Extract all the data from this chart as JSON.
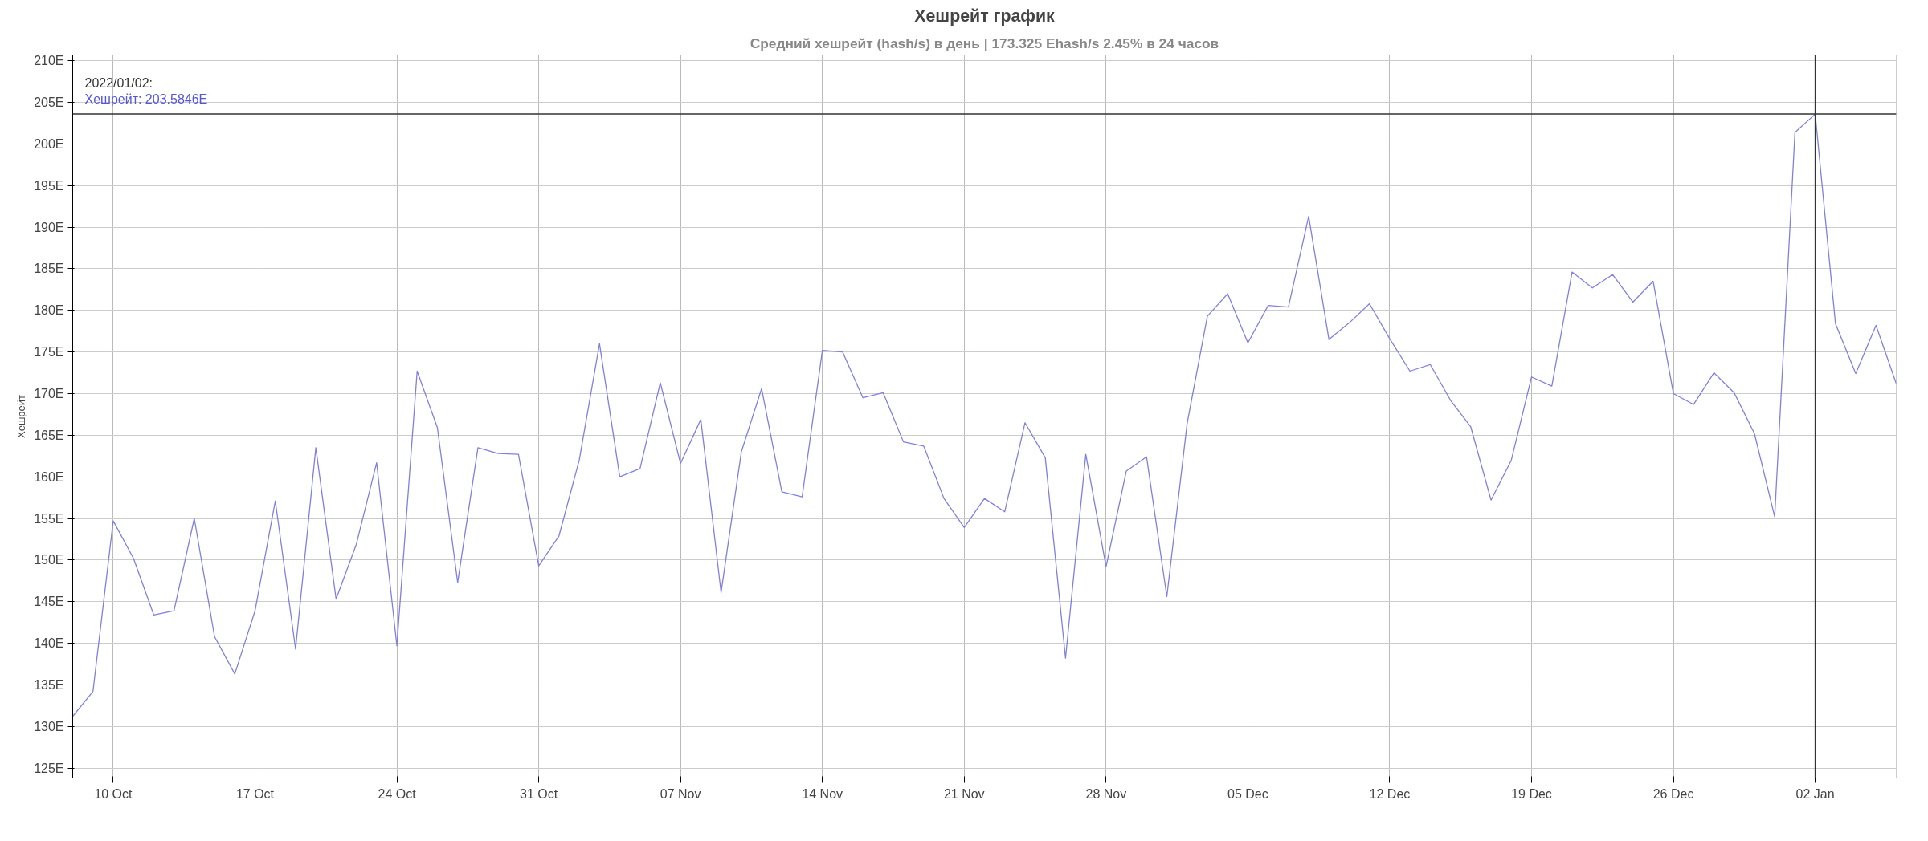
{
  "chart_data": {
    "type": "line",
    "title": "Хешрейт график",
    "subtitle": "Средний хешрейт (hash/s) в день | 173.325 Ehash/s 2.45% в 24 часов",
    "ylabel": "Хешрейт",
    "x": [
      "2021-10-08",
      "2021-10-09",
      "2021-10-10",
      "2021-10-11",
      "2021-10-12",
      "2021-10-13",
      "2021-10-14",
      "2021-10-15",
      "2021-10-16",
      "2021-10-17",
      "2021-10-18",
      "2021-10-19",
      "2021-10-20",
      "2021-10-21",
      "2021-10-22",
      "2021-10-23",
      "2021-10-24",
      "2021-10-25",
      "2021-10-26",
      "2021-10-27",
      "2021-10-28",
      "2021-10-29",
      "2021-10-30",
      "2021-10-31",
      "2021-11-01",
      "2021-11-02",
      "2021-11-03",
      "2021-11-04",
      "2021-11-05",
      "2021-11-06",
      "2021-11-07",
      "2021-11-08",
      "2021-11-09",
      "2021-11-10",
      "2021-11-11",
      "2021-11-12",
      "2021-11-13",
      "2021-11-14",
      "2021-11-15",
      "2021-11-16",
      "2021-11-17",
      "2021-11-18",
      "2021-11-19",
      "2021-11-20",
      "2021-11-21",
      "2021-11-22",
      "2021-11-23",
      "2021-11-24",
      "2021-11-25",
      "2021-11-26",
      "2021-11-27",
      "2021-11-28",
      "2021-11-29",
      "2021-11-30",
      "2021-12-01",
      "2021-12-02",
      "2021-12-03",
      "2021-12-04",
      "2021-12-05",
      "2021-12-06",
      "2021-12-07",
      "2021-12-08",
      "2021-12-09",
      "2021-12-10",
      "2021-12-11",
      "2021-12-12",
      "2021-12-13",
      "2021-12-14",
      "2021-12-15",
      "2021-12-16",
      "2021-12-17",
      "2021-12-18",
      "2021-12-19",
      "2021-12-20",
      "2021-12-21",
      "2021-12-22",
      "2021-12-23",
      "2021-12-24",
      "2021-12-25",
      "2021-12-26",
      "2021-12-27",
      "2021-12-28",
      "2021-12-29",
      "2021-12-30",
      "2021-12-31",
      "2022-01-01",
      "2022-01-02",
      "2022-01-03",
      "2022-01-04",
      "2022-01-05",
      "2022-01-06"
    ],
    "series": [
      {
        "color": "#7f7fe8",
        "values": [
          131.2,
          134.2,
          154.7,
          150.2,
          143.4,
          143.9,
          155.0,
          140.8,
          136.3,
          143.9,
          157.1,
          139.3,
          163.5,
          145.3,
          151.9,
          161.7,
          139.7,
          172.7,
          165.9,
          147.3,
          163.5,
          162.8,
          162.7,
          149.3,
          152.9,
          162.0,
          176.0,
          160.0,
          161.0,
          171.3,
          161.6,
          166.9,
          146.1,
          163.0,
          170.6,
          158.2,
          157.6,
          175.2,
          175.0,
          169.5,
          170.1,
          164.2,
          163.7,
          157.4,
          153.9,
          157.4,
          155.8,
          166.5,
          162.3,
          138.2,
          162.7,
          149.2,
          160.7,
          162.4,
          145.6,
          166.4,
          179.3,
          182.0,
          176.1,
          180.6,
          180.4,
          191.3,
          176.5,
          178.5,
          180.8,
          176.6,
          172.7,
          173.5,
          169.2,
          166.0,
          157.2,
          162.0,
          172.0,
          170.9,
          184.6,
          182.7,
          184.3,
          181.0,
          183.5,
          170.0,
          168.7,
          172.5,
          170.1,
          165.2,
          155.2,
          201.4,
          203.6,
          178.4,
          172.4,
          178.2,
          171.2
        ]
      }
    ],
    "xlim": [
      "2021-10-08",
      "2022-01-06"
    ],
    "xticks": [
      {
        "value": "2021-10-10",
        "label": "10 Oct"
      },
      {
        "value": "2021-10-17",
        "label": "17 Oct"
      },
      {
        "value": "2021-10-24",
        "label": "24 Oct"
      },
      {
        "value": "2021-10-31",
        "label": "31 Oct"
      },
      {
        "value": "2021-11-07",
        "label": "07 Nov"
      },
      {
        "value": "2021-11-14",
        "label": "14 Nov"
      },
      {
        "value": "2021-11-21",
        "label": "21 Nov"
      },
      {
        "value": "2021-11-28",
        "label": "28 Nov"
      },
      {
        "value": "2021-12-05",
        "label": "05 Dec"
      },
      {
        "value": "2021-12-12",
        "label": "12 Dec"
      },
      {
        "value": "2021-12-19",
        "label": "19 Dec"
      },
      {
        "value": "2021-12-26",
        "label": "26 Dec"
      },
      {
        "value": "2022-01-02",
        "label": "02 Jan"
      }
    ],
    "ylim": [
      123.8,
      210.7
    ],
    "yticks": [
      {
        "value": 125,
        "label": "125E"
      },
      {
        "value": 130,
        "label": "130E"
      },
      {
        "value": 135,
        "label": "135E"
      },
      {
        "value": 140,
        "label": "140E"
      },
      {
        "value": 145,
        "label": "145E"
      },
      {
        "value": 150,
        "label": "150E"
      },
      {
        "value": 155,
        "label": "155E"
      },
      {
        "value": 160,
        "label": "160E"
      },
      {
        "value": 165,
        "label": "165E"
      },
      {
        "value": 170,
        "label": "170E"
      },
      {
        "value": 175,
        "label": "175E"
      },
      {
        "value": 180,
        "label": "180E"
      },
      {
        "value": 185,
        "label": "185E"
      },
      {
        "value": 190,
        "label": "190E"
      },
      {
        "value": 195,
        "label": "195E"
      },
      {
        "value": 200,
        "label": "200E"
      },
      {
        "value": 205,
        "label": "205E"
      },
      {
        "value": 210,
        "label": "210E"
      }
    ],
    "ref_lines": [
      {
        "axis": "x",
        "value": "2022-01-02",
        "color": "#333333"
      },
      {
        "axis": "y",
        "value": 203.6,
        "color": "#333333"
      }
    ],
    "annotations": [
      "2022/01/02:",
      "Хешрейт: 203.5846E"
    ],
    "grid": true,
    "marker": "none",
    "line_style": "solid"
  }
}
